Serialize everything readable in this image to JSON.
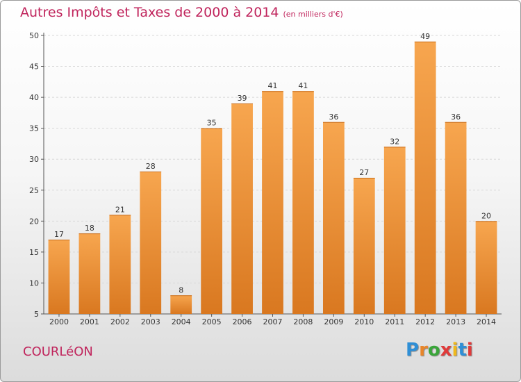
{
  "header": {
    "title": "Autres Impôts et Taxes de 2000 à 2014",
    "unit": "(en milliers d'€)"
  },
  "footer": {
    "place": "COURLéON",
    "logo_letters": [
      "P",
      "r",
      "o",
      "x",
      "i",
      "t",
      "i"
    ],
    "logo_colors": [
      "#2f8fd6",
      "#e8852a",
      "#3aa53a",
      "#e03a3a",
      "#f0b81c",
      "#2f8fd6",
      "#e03a3a"
    ]
  },
  "colors": {
    "bar_light": "#f7a64f",
    "bar_dark": "#d97820",
    "title": "#c0245c"
  },
  "chart_data": {
    "type": "bar",
    "title": "Autres Impôts et Taxes de 2000 à 2014",
    "subtitle": "(en milliers d'€)",
    "categories": [
      "2000",
      "2001",
      "2002",
      "2003",
      "2004",
      "2005",
      "2006",
      "2007",
      "2008",
      "2009",
      "2010",
      "2011",
      "2012",
      "2013",
      "2014"
    ],
    "values": [
      17,
      18,
      21,
      28,
      8,
      35,
      39,
      41,
      41,
      36,
      27,
      32,
      49,
      36,
      20
    ],
    "ylim": [
      5,
      50
    ],
    "yticks": [
      5,
      10,
      15,
      20,
      25,
      30,
      35,
      40,
      45,
      50
    ],
    "grid": true,
    "data_labels": true
  }
}
